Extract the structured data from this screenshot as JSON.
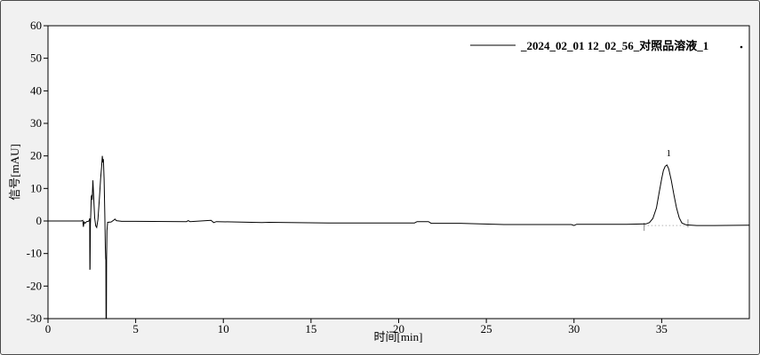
{
  "window": {
    "background_color": "#f1f1f1",
    "border_color": "#4a4a4a",
    "plot_background": "#ffffff",
    "frame_color": "#000000"
  },
  "legend": {
    "series_label": "_2024_02_01 12_02_56_对照品溶液_1",
    "marker_type": "line",
    "marker_color": "#000000",
    "end_dot": "."
  },
  "chart_data": {
    "type": "line",
    "title": "",
    "xlabel": "时间[min]",
    "ylabel": "信号[mAU]",
    "xlim": [
      0,
      40
    ],
    "ylim": [
      -30,
      60
    ],
    "x_ticks": [
      0,
      5,
      10,
      15,
      20,
      25,
      30,
      35
    ],
    "y_ticks": [
      60,
      50,
      40,
      30,
      20,
      10,
      0,
      -10,
      -20,
      -30
    ],
    "grid": false,
    "legend_position": "top-right-inside",
    "series": [
      {
        "name": "_2024_02_01 12_02_56_对照品溶液_1",
        "color": "#000000",
        "points": [
          [
            0,
            0
          ],
          [
            1.9,
            0
          ],
          [
            1.98,
            0.2
          ],
          [
            2.02,
            -1.8
          ],
          [
            2.06,
            -0.3
          ],
          [
            2.12,
            -0.7
          ],
          [
            2.2,
            -0.2
          ],
          [
            2.3,
            -0.1
          ],
          [
            2.36,
            0.3
          ],
          [
            2.38,
            0.8
          ],
          [
            2.39,
            -15
          ],
          [
            2.4,
            -14.5
          ],
          [
            2.42,
            -1
          ],
          [
            2.44,
            2
          ],
          [
            2.47,
            7.5
          ],
          [
            2.5,
            8
          ],
          [
            2.52,
            6.5
          ],
          [
            2.56,
            12.5
          ],
          [
            2.6,
            8
          ],
          [
            2.66,
            1
          ],
          [
            2.72,
            -1.5
          ],
          [
            2.78,
            -2
          ],
          [
            2.85,
            0.5
          ],
          [
            2.92,
            6
          ],
          [
            3.0,
            13
          ],
          [
            3.06,
            17
          ],
          [
            3.1,
            20
          ],
          [
            3.13,
            18
          ],
          [
            3.16,
            19
          ],
          [
            3.2,
            13
          ],
          [
            3.24,
            2
          ],
          [
            3.27,
            -8
          ],
          [
            3.29,
            -11.5
          ],
          [
            3.3,
            -12
          ],
          [
            3.31,
            -30
          ],
          [
            3.33,
            -30
          ],
          [
            3.34,
            -12
          ],
          [
            3.36,
            -3
          ],
          [
            3.4,
            -0.4
          ],
          [
            3.6,
            -0.3
          ],
          [
            3.76,
            0.3
          ],
          [
            3.82,
            0.6
          ],
          [
            3.9,
            0.1
          ],
          [
            4.2,
            -0.1
          ],
          [
            5,
            -0.1
          ],
          [
            7.9,
            -0.2
          ],
          [
            8.0,
            0.1
          ],
          [
            8.1,
            -0.2
          ],
          [
            9.3,
            0.2
          ],
          [
            9.45,
            -0.5
          ],
          [
            9.6,
            -0.2
          ],
          [
            12.2,
            -0.5
          ],
          [
            12.6,
            -0.4
          ],
          [
            16,
            -0.6
          ],
          [
            20.9,
            -0.6
          ],
          [
            21.05,
            -0.2
          ],
          [
            21.7,
            -0.2
          ],
          [
            21.85,
            -0.7
          ],
          [
            23.5,
            -0.7
          ],
          [
            26,
            -1.1
          ],
          [
            29.85,
            -1.1
          ],
          [
            30,
            -1.4
          ],
          [
            30.15,
            -1.0
          ],
          [
            33,
            -1.0
          ],
          [
            34.1,
            -0.9
          ],
          [
            34.3,
            -0.5
          ],
          [
            34.5,
            0.8
          ],
          [
            34.7,
            4
          ],
          [
            34.85,
            8.5
          ],
          [
            35.0,
            13
          ],
          [
            35.1,
            15.5
          ],
          [
            35.2,
            16.8
          ],
          [
            35.3,
            17.2
          ],
          [
            35.4,
            16
          ],
          [
            35.55,
            12.5
          ],
          [
            35.7,
            8
          ],
          [
            35.85,
            4
          ],
          [
            36.0,
            1
          ],
          [
            36.15,
            -0.6
          ],
          [
            36.4,
            -1.2
          ],
          [
            37,
            -1.4
          ],
          [
            38,
            -1.4
          ],
          [
            40,
            -1.3
          ]
        ]
      }
    ],
    "peaks": [
      {
        "label": "1",
        "time": 35.3,
        "value": 17.2
      }
    ],
    "integration": {
      "start_time": 34.0,
      "end_time": 36.5,
      "baseline_value": -1.4,
      "line_style": "dotted",
      "line_color": "#b0b0b0",
      "marker_color": "#8a8a8a"
    }
  }
}
